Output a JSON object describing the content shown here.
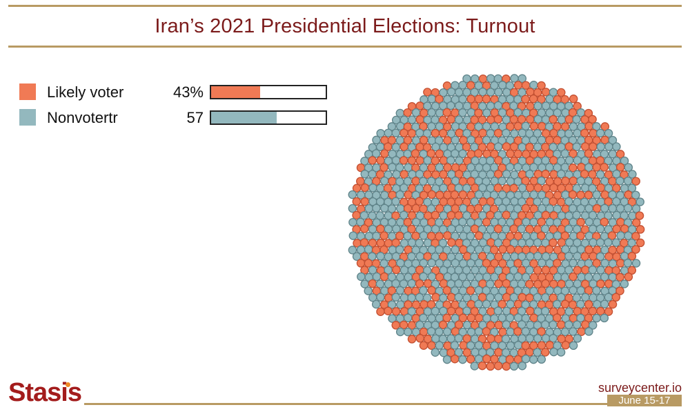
{
  "header": {
    "title": "Iran’s 2021 Presidential Elections: Turnout"
  },
  "colors": {
    "likely": "#f07a55",
    "non": "#93b8be",
    "accent": "#b89a63",
    "title": "#7b1a1a"
  },
  "chart_data": {
    "type": "pie",
    "style": "dot-cloud",
    "title": "Iran’s 2021 Presidential Elections: Turnout",
    "series": [
      {
        "name": "Likely voter",
        "label": "43%",
        "value": 43,
        "color": "#f07a55"
      },
      {
        "name": "Nonvotertr",
        "label": "57",
        "value": 57,
        "color": "#93b8be"
      }
    ],
    "bar_scale_max": 100
  },
  "footer": {
    "logo": "Stasis",
    "site": "surveycenter.io",
    "date": "June 15-17"
  }
}
